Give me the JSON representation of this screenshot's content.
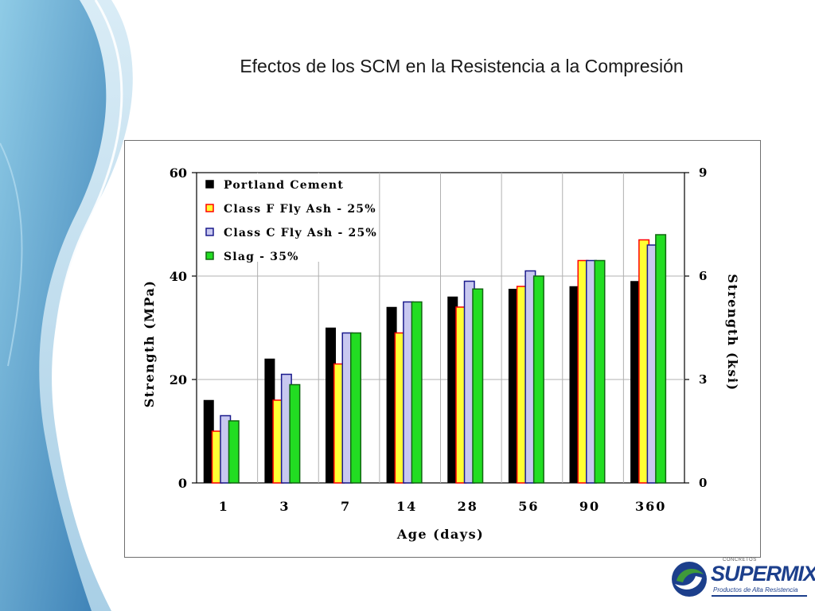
{
  "slide": {
    "title": "Efectos de los SCM en la Resistencia a la Compresión"
  },
  "logo": {
    "tagline": "CONCRETOS",
    "name": "SUPERMIX",
    "slogan": "Productos de Alta Resistencia"
  },
  "colors": {
    "portland": "#000000",
    "fly_ash_f_fill": "#ffff33",
    "fly_ash_f_edge": "#ff0000",
    "fly_ash_c_fill": "#c8c8f0",
    "fly_ash_c_edge": "#1a1a8c",
    "slag_fill": "#22dd22",
    "slag_edge": "#116611",
    "accent_blue": "#1c3f8c",
    "accent_green": "#3f9a3a"
  },
  "chart_data": {
    "type": "bar",
    "title": "",
    "xlabel": "Age (days)",
    "ylabel": "Strength (MPa)",
    "y2label": "Strength (ksi)",
    "categories": [
      "1",
      "3",
      "7",
      "14",
      "28",
      "56",
      "90",
      "360"
    ],
    "ylim": [
      0,
      60
    ],
    "yticks": [
      "0",
      "20",
      "40",
      "60"
    ],
    "y2lim": [
      0,
      9
    ],
    "y2ticks": [
      "0",
      "3",
      "6",
      "9"
    ],
    "grid": true,
    "legend_position": "top-left",
    "series": [
      {
        "name": "Portland Cement",
        "values": [
          16,
          24,
          30,
          34,
          36,
          37.5,
          38,
          39
        ]
      },
      {
        "name": "Class F Fly Ash - 25%",
        "values": [
          10,
          16,
          23,
          29,
          34,
          38,
          43,
          47
        ]
      },
      {
        "name": "Class C Fly Ash - 25%",
        "values": [
          13,
          21,
          29,
          35,
          39,
          41,
          43,
          46
        ]
      },
      {
        "name": "Slag - 35%",
        "values": [
          12,
          19,
          29,
          35,
          37.5,
          40,
          43,
          48
        ]
      }
    ]
  }
}
